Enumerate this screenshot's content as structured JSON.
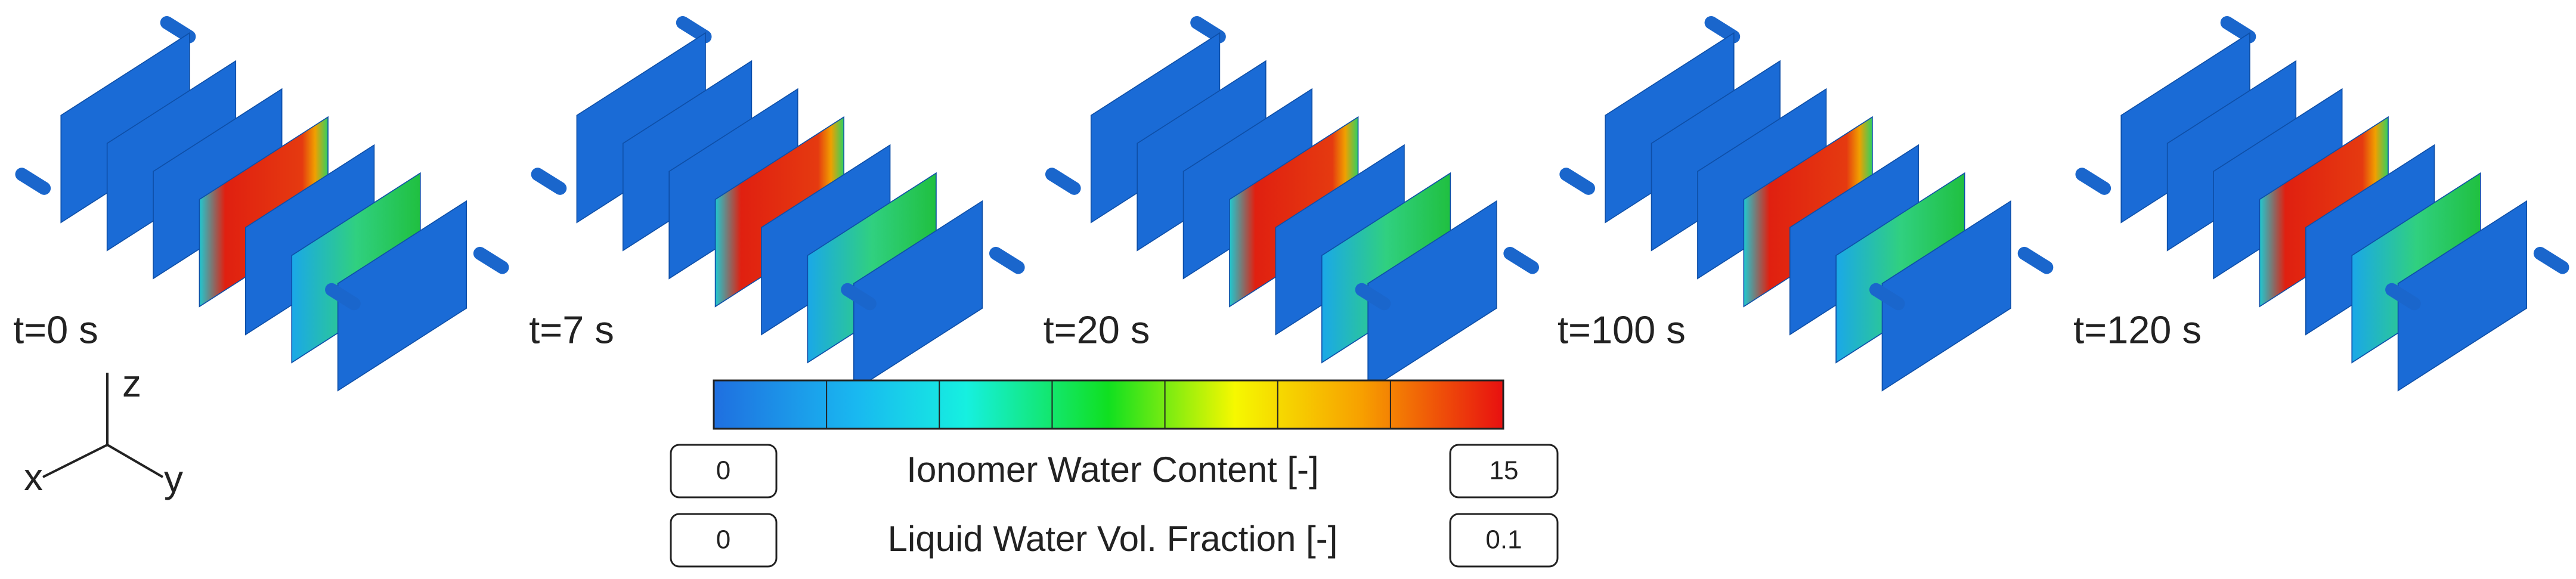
{
  "snapshots": [
    {
      "label": "t=0 s"
    },
    {
      "label": "t=7 s"
    },
    {
      "label": "t=20 s"
    },
    {
      "label": "t=100 s"
    },
    {
      "label": "t=120 s"
    }
  ],
  "scales": [
    {
      "name": "Ionomer Water Content [-]",
      "min": "0",
      "max": "15"
    },
    {
      "name": "Liquid Water Vol. Fraction [-]",
      "min": "0",
      "max": "0.1"
    }
  ],
  "axes": {
    "z": "z",
    "x": "x",
    "y": "y"
  }
}
